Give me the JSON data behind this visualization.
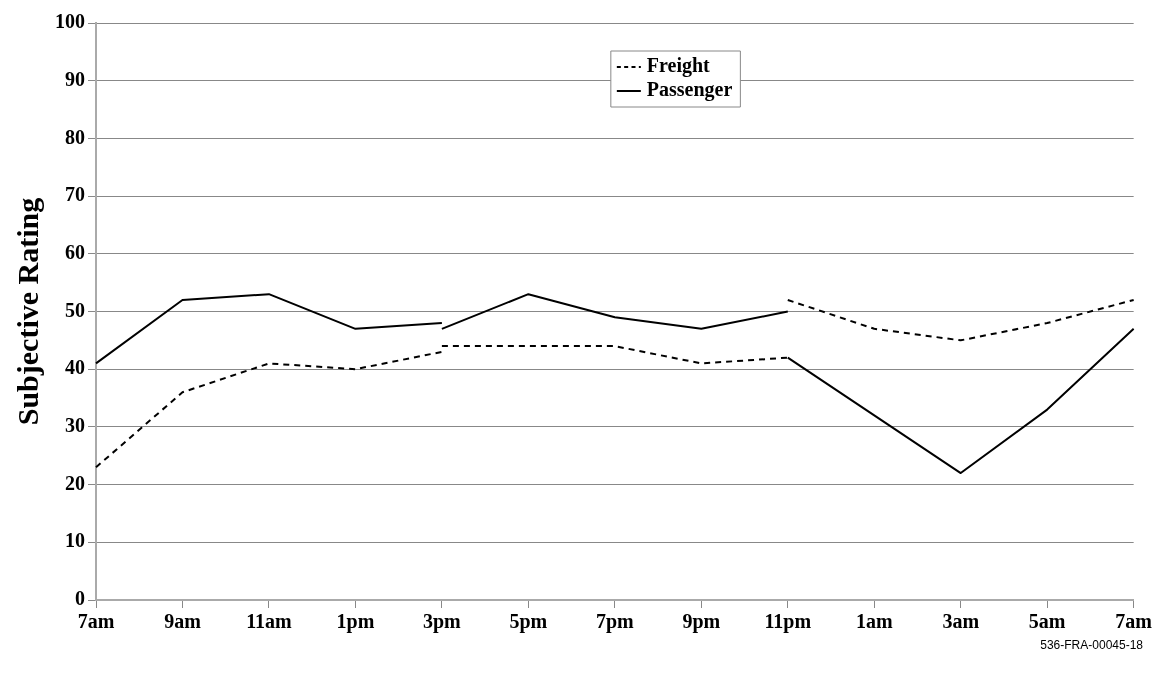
{
  "chart_data": {
    "type": "line",
    "ylabel": "Subjective Rating",
    "categories": [
      "7am",
      "9am",
      "11am",
      "1pm",
      "3pm",
      "5pm",
      "7pm",
      "9pm",
      "11pm",
      "1am",
      "3am",
      "5am",
      "7am"
    ],
    "ylim": [
      0,
      100
    ],
    "yticks": [
      0,
      10,
      20,
      30,
      40,
      50,
      60,
      70,
      80,
      90,
      100
    ],
    "grid": "y",
    "legend": "top",
    "marker": "none",
    "series": [
      {
        "name": "Freight",
        "color": "#000000",
        "line_style": "dashed",
        "values": [
          23,
          36,
          41,
          40,
          43,
          null,
          null,
          null,
          null,
          null,
          null,
          null,
          null
        ]
      },
      {
        "name": "Passenger",
        "color": "#000000",
        "line_style": "solid",
        "values": [
          41,
          52,
          53,
          47,
          48,
          null,
          null,
          null,
          null,
          null,
          null,
          null,
          null
        ]
      },
      {
        "color": "#000000",
        "line_style": "dashed",
        "values": [
          null,
          null,
          null,
          null,
          44,
          44,
          44,
          41,
          42,
          null,
          null,
          null,
          null
        ]
      },
      {
        "color": "#000000",
        "line_style": "solid",
        "values": [
          null,
          null,
          null,
          null,
          47,
          53,
          49,
          47,
          50,
          null,
          null,
          null,
          null
        ]
      },
      {
        "color": "#000000",
        "line_style": "dashed",
        "values": [
          null,
          null,
          null,
          null,
          null,
          null,
          null,
          null,
          52,
          47,
          45,
          48,
          52
        ]
      },
      {
        "color": "#000000",
        "line_style": "solid",
        "values": [
          null,
          null,
          null,
          null,
          null,
          null,
          null,
          null,
          42,
          32,
          22,
          33,
          47
        ]
      }
    ],
    "annotations": [
      "536-FRA-00045-18"
    ]
  }
}
